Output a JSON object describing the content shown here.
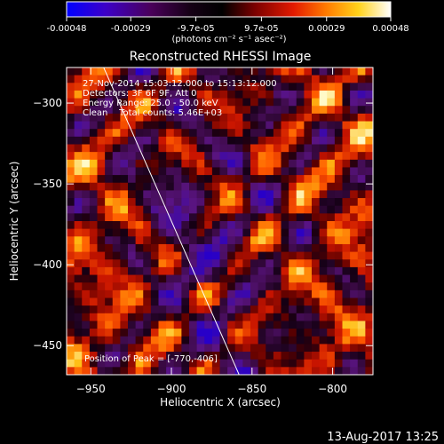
{
  "footer": {
    "date": "13-Aug-2017 13:25"
  },
  "colorbar": {
    "ticks": [
      "-0.00048",
      "-0.00029",
      "-9.7e-05",
      "9.7e-05",
      "0.00029",
      "0.00048"
    ],
    "tick_values": [
      -0.00048,
      -0.00029,
      -9.7e-05,
      9.7e-05,
      0.00029,
      0.00048
    ],
    "unit_label": "(photons cm⁻² s⁻¹ asec⁻²)",
    "colormap": "red-temperature with blue negative end",
    "colors": [
      "#0000ff",
      "#4b0082",
      "#2a0040",
      "#000000",
      "#800000",
      "#ff0000",
      "#ff8c00",
      "#ffd700",
      "#ffffff"
    ]
  },
  "chart_data": {
    "type": "heatmap",
    "title": "Reconstructed RHESSI Image",
    "xlabel": "Heliocentric X (arcsec)",
    "ylabel": "Heliocentric Y (arcsec)",
    "xlim": [
      -965,
      -775
    ],
    "ylim": [
      -468,
      -278
    ],
    "xticks": [
      -950,
      -900,
      -850,
      -800
    ],
    "xtick_labels": [
      "−950",
      "−900",
      "−850",
      "−800"
    ],
    "yticks": [
      -300,
      -350,
      -400,
      -450
    ],
    "ytick_labels": [
      "−300",
      "−350",
      "−400",
      "−450"
    ],
    "value_range": [
      -0.00048,
      0.00048
    ],
    "limb_line": {
      "x": [
        -942,
        -858
      ],
      "y": [
        -278,
        -468
      ]
    },
    "info_lines": [
      "27-Nov-2014 15:03:12.000 to 15:13:12.000",
      "Detectors: 3F 6F 9F, Att 0",
      "Energy Range: 25.0 - 50.0 keV",
      "Clean    Total counts: 5.46E+03"
    ],
    "peak_label": "Position of Peak = [-770,-406]",
    "peak_position": [
      -770,
      -406
    ],
    "grid": false,
    "legend": "none"
  }
}
